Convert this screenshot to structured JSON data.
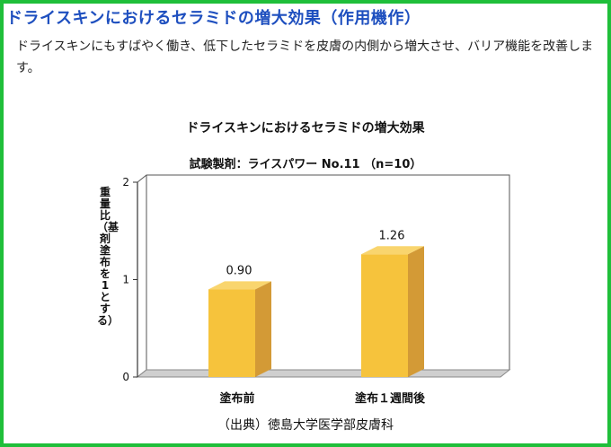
{
  "header": {
    "title": "ドライスキンにおけるセラミドの増大効果（作用機作）"
  },
  "description": "ドライスキンにもすばやく働き、低下したセラミドを皮膚の内側から増大させ、バリア機能を改善します。",
  "source": "（出典）徳島大学医学部皮膚科",
  "colors": {
    "border": "#1fbf3a",
    "heading": "#1e4fbf",
    "bar_front": "#f6c33c",
    "bar_side": "#d39a36",
    "bar_top": "#f9d56e",
    "floor": "#cfcfcf"
  },
  "chart_data": {
    "type": "bar",
    "title": "ドライスキンにおけるセラミドの増大効果",
    "subtitle": "試験製剤：ライスパワー No.11 （n=10）",
    "ylabel": "重量比（基剤塗布を1とする）",
    "categories": [
      "塗布前",
      "塗布１週間後"
    ],
    "values": [
      0.9,
      1.26
    ],
    "value_labels": [
      "0.90",
      "1.26"
    ],
    "yticks": [
      "0",
      "1",
      "2"
    ],
    "ylim": [
      0,
      2
    ],
    "grid": false
  }
}
